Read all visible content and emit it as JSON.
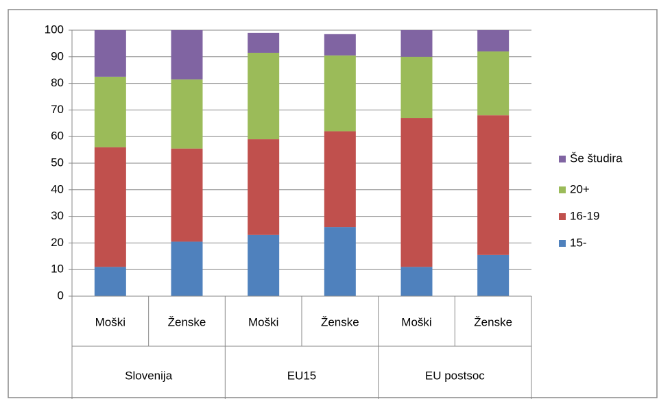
{
  "chart_data": {
    "type": "bar",
    "stacked": true,
    "categories": [
      "Moški",
      "Ženske",
      "Moški",
      "Ženske",
      "Moški",
      "Ženske"
    ],
    "groups": [
      "Slovenija",
      "EU15",
      "EU postsoc"
    ],
    "series": [
      {
        "name": "15-",
        "color": "#4f81bd",
        "values": [
          11,
          20.5,
          23,
          26,
          11,
          15.5
        ]
      },
      {
        "name": "16-19",
        "color": "#c0504d",
        "values": [
          45,
          35,
          36,
          36,
          56,
          52.5
        ]
      },
      {
        "name": "20+",
        "color": "#9bbb59",
        "values": [
          26.5,
          26,
          32.5,
          28.5,
          23,
          24
        ]
      },
      {
        "name": "Še študira",
        "color": "#8064a2",
        "values": [
          17.5,
          18.5,
          7.5,
          8,
          10,
          8
        ]
      }
    ],
    "ylim": [
      0,
      100
    ],
    "yticks": [
      0,
      10,
      20,
      30,
      40,
      50,
      60,
      70,
      80,
      90,
      100
    ],
    "grid": true,
    "legend": "right"
  }
}
